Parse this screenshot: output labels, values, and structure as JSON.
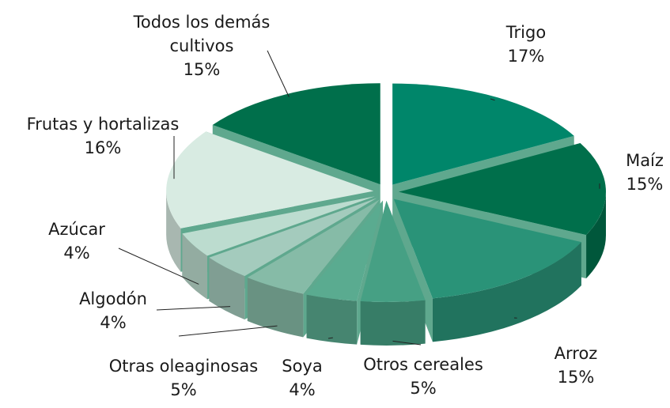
{
  "chart_data": {
    "type": "pie3d",
    "categories": [
      "Trigo",
      "Maíz",
      "Arroz",
      "Otros cereales",
      "Soya",
      "Otras oleaginosas",
      "Algodón",
      "Azúcar",
      "Frutas y hortalizas",
      "Todos los demás cultivos"
    ],
    "values": [
      17,
      15,
      15,
      5,
      4,
      5,
      4,
      4,
      16,
      15
    ],
    "value_labels": [
      "17%",
      "15%",
      "15%",
      "5%",
      "4%",
      "5%",
      "4%",
      "4%",
      "16%",
      "15%"
    ],
    "colors": [
      "#00866a",
      "#006f4b",
      "#2a9378",
      "#46a084",
      "#5aab90",
      "#86bba7",
      "#a4cbbd",
      "#bcdccf",
      "#d8ebe2",
      "#006f4b"
    ]
  }
}
